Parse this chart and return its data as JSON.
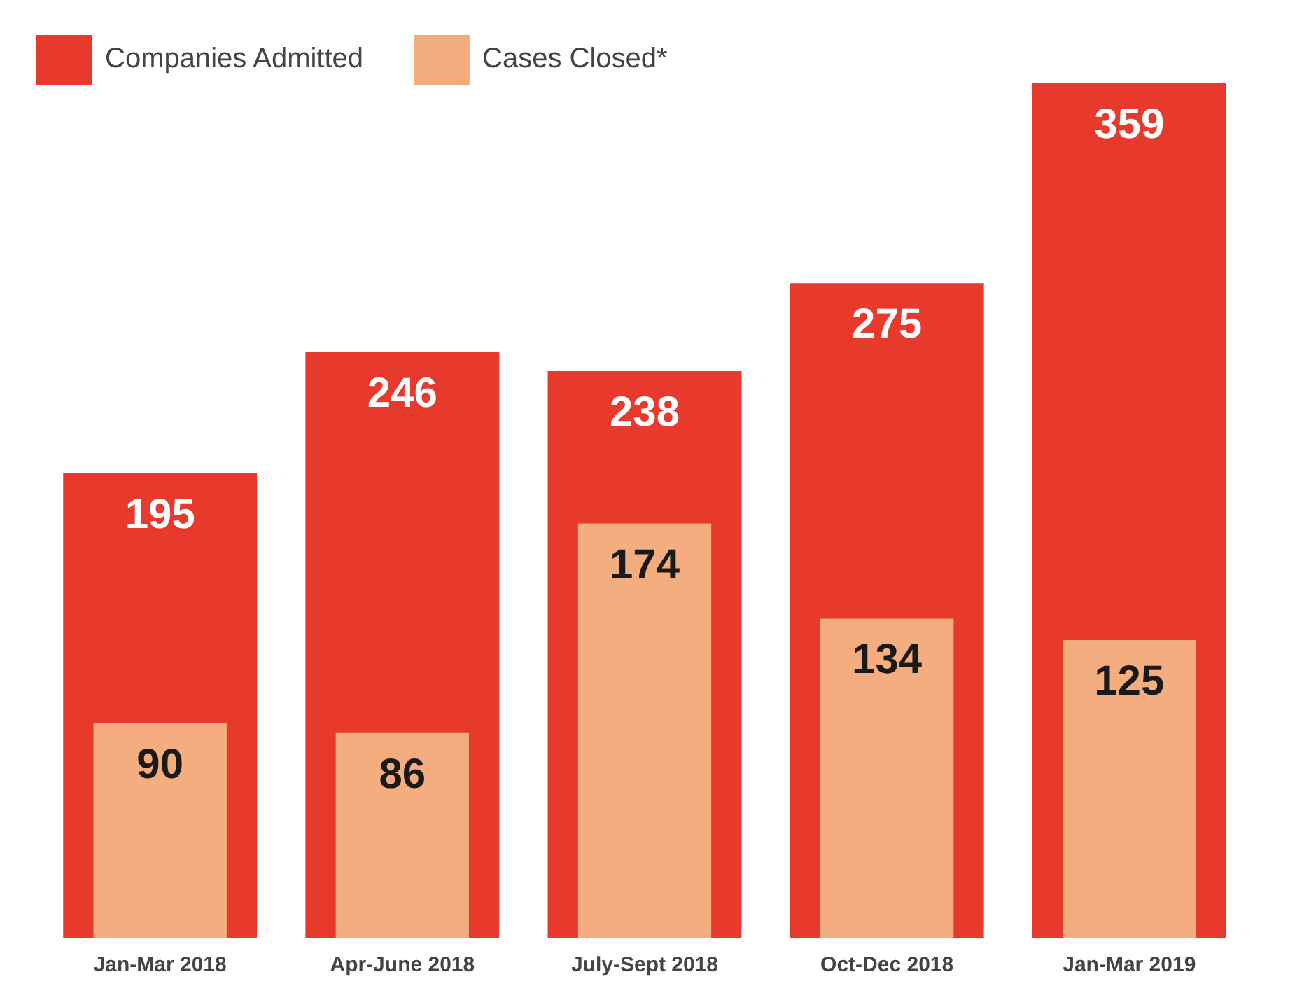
{
  "chart_data": {
    "type": "bar",
    "categories": [
      "Jan-Mar 2018",
      "Apr-June 2018",
      "July-Sept 2018",
      "Oct-Dec 2018",
      "Jan-Mar 2019"
    ],
    "series": [
      {
        "name": "Companies Admitted",
        "color": "#e8392d",
        "values": [
          195,
          246,
          238,
          275,
          359
        ]
      },
      {
        "name": "Cases Closed*",
        "color": "#f4ad7f",
        "values": [
          90,
          86,
          174,
          134,
          125
        ]
      }
    ],
    "data_labels": true,
    "legend": "top left",
    "grid": false
  }
}
